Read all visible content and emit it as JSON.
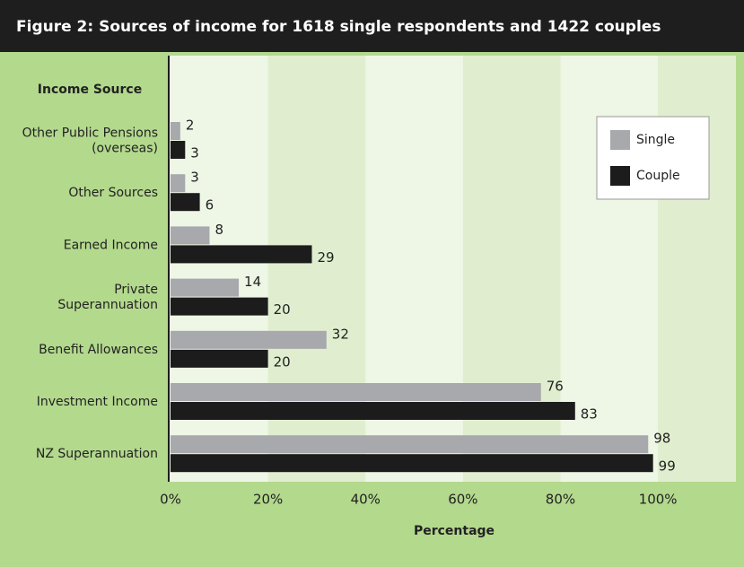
{
  "chart_data": {
    "type": "bar",
    "orientation": "horizontal",
    "title": "Figure 2:  Sources of income for 1618 single respondents and 1422 couples",
    "category_axis_title": "Income Source",
    "x_axis_title": "Percentage",
    "categories": [
      "Other Public Pensions\n(overseas)",
      "Other Sources",
      "Earned Income",
      "Private\nSuperannuation",
      "Benefit Allowances",
      "Investment Income",
      "NZ Superannuation"
    ],
    "series": [
      {
        "name": "Single",
        "color": "#a7a9ac",
        "values": [
          2,
          3,
          8,
          14,
          32,
          76,
          98
        ]
      },
      {
        "name": "Couple",
        "color": "#1c1c1c",
        "values": [
          3,
          6,
          29,
          20,
          20,
          83,
          99
        ]
      }
    ],
    "xlim": [
      0,
      116
    ],
    "xticks": [
      {
        "value": 0,
        "label": "0%"
      },
      {
        "value": 20,
        "label": "20%"
      },
      {
        "value": 40,
        "label": "40%"
      },
      {
        "value": 60,
        "label": "60%"
      },
      {
        "value": 80,
        "label": "80%"
      },
      {
        "value": 100,
        "label": "100%"
      }
    ],
    "legend": "upper right"
  }
}
